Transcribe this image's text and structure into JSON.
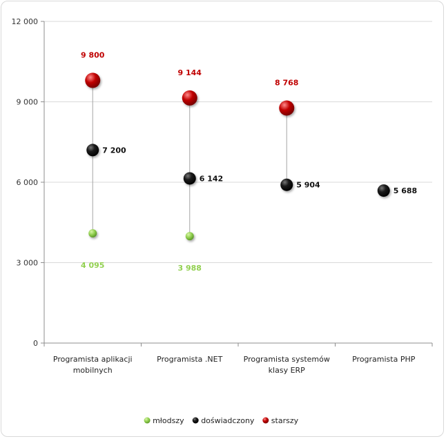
{
  "chart_data": {
    "type": "scatter",
    "title": "",
    "xlabel": "",
    "ylabel": "",
    "ylim": [
      0,
      12000
    ],
    "yticks": [
      {
        "value": 0,
        "label": "0"
      },
      {
        "value": 3000,
        "label": "3 000"
      },
      {
        "value": 6000,
        "label": "6 000"
      },
      {
        "value": 9000,
        "label": "9 000"
      },
      {
        "value": 12000,
        "label": "12 000"
      }
    ],
    "categories": [
      [
        "Programista aplikacji",
        "mobilnych"
      ],
      [
        "Programista .NET"
      ],
      [
        "Programista systemów",
        "klasy ERP"
      ],
      [
        "Programista PHP"
      ]
    ],
    "series": [
      {
        "name": "młodszy",
        "color": "#92d050",
        "label_color": "#92d050",
        "values": [
          4095,
          3988,
          null,
          null
        ],
        "labels": [
          "4 095",
          "3 988",
          null,
          null
        ],
        "label_position": "below"
      },
      {
        "name": "doświadczony",
        "color": "#111111",
        "label_color": "#111111",
        "values": [
          7200,
          6142,
          5904,
          5688
        ],
        "labels": [
          "7 200",
          "6 142",
          "5 904",
          "5 688"
        ],
        "label_position": "right"
      },
      {
        "name": "starszy",
        "color": "#c00000",
        "label_color": "#c00000",
        "values": [
          9800,
          9144,
          8768,
          null
        ],
        "labels": [
          "9 800",
          "9 144",
          "8 768",
          null
        ],
        "label_position": "above"
      }
    ],
    "grid": true,
    "legend_position": "bottom"
  }
}
